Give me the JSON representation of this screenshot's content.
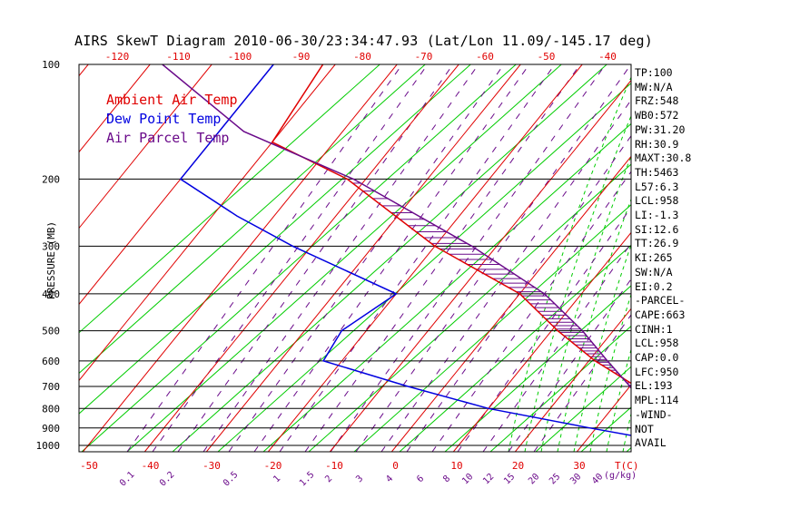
{
  "title": "AIRS SkewT Diagram 2010-06-30/23:34:47.93 (Lat/Lon 11.09/-145.17 deg)",
  "ylabel": "PRESSURE (MB)",
  "legend": [
    {
      "label": "Ambient Air Temp",
      "color": "#e00000"
    },
    {
      "label": "Dew Point Temp",
      "color": "#0000e0"
    },
    {
      "label": "Air Parcel Temp",
      "color": "#6a0a8a"
    }
  ],
  "indices": [
    "TP:100",
    "MW:N/A",
    "FRZ:548",
    "WB0:572",
    "PW:31.20",
    "RH:30.9",
    "MAXT:30.8",
    "TH:5463",
    "L57:6.3",
    "LCL:958",
    "LI:-1.3",
    "SI:12.6",
    "TT:26.9",
    "KI:265",
    "SW:N/A",
    "EI:0.2",
    "-PARCEL-",
    "CAPE:663",
    "CINH:1",
    "LCL:958",
    "CAP:0.0",
    "LFC:950",
    "EL:193",
    "MPL:114",
    "-WIND-",
    "NOT",
    "AVAIL"
  ],
  "chart_data": {
    "type": "line",
    "title": "AIRS SkewT Diagram 2010-06-30/23:34:47.93 (Lat/Lon 11.09/-145.17 deg)",
    "xlabel": "T(C)",
    "ylabel": "PRESSURE (MB)",
    "pressure_ticks": [
      100,
      200,
      300,
      400,
      500,
      600,
      700,
      800,
      900,
      1000
    ],
    "temp_ticks_bottom": [
      -50,
      -40,
      -30,
      -20,
      -10,
      0,
      10,
      20,
      30
    ],
    "temp_ticks_top": [
      -120,
      -110,
      -100,
      -90,
      -80,
      -70,
      -60,
      -50,
      -40
    ],
    "mixing_ratio_ticks": [
      "0.1",
      "0.2",
      "0.5",
      "1",
      "1.5",
      "2",
      "3",
      "4",
      "6",
      "8",
      "10",
      "12",
      "15",
      "20",
      "25",
      "30",
      "40"
    ],
    "mixing_ratio_unit": "(g/kg)",
    "series": [
      {
        "name": "Ambient Air Temp",
        "color": "#e00000",
        "points": [
          [
            100,
            -82
          ],
          [
            160,
            -80
          ],
          [
            200,
            -63
          ],
          [
            300,
            -40
          ],
          [
            400,
            -20
          ],
          [
            500,
            -9
          ],
          [
            600,
            1
          ],
          [
            700,
            11
          ],
          [
            850,
            18
          ],
          [
            950,
            25
          ],
          [
            1010,
            30
          ]
        ]
      },
      {
        "name": "Dew Point Temp",
        "color": "#0000e0",
        "points": [
          [
            100,
            -90
          ],
          [
            200,
            -90
          ],
          [
            250,
            -76
          ],
          [
            300,
            -63
          ],
          [
            400,
            -40
          ],
          [
            500,
            -44
          ],
          [
            600,
            -43
          ],
          [
            700,
            -26
          ],
          [
            800,
            -10
          ],
          [
            900,
            9
          ],
          [
            960,
            20
          ],
          [
            1010,
            26
          ]
        ]
      },
      {
        "name": "Air Parcel Temp",
        "color": "#6a0a8a",
        "points": [
          [
            100,
            -108
          ],
          [
            150,
            -86
          ],
          [
            200,
            -62
          ],
          [
            300,
            -34
          ],
          [
            400,
            -16
          ],
          [
            500,
            -5
          ],
          [
            600,
            3
          ],
          [
            700,
            10
          ],
          [
            850,
            18
          ],
          [
            950,
            25
          ],
          [
            1010,
            30
          ]
        ]
      }
    ]
  }
}
